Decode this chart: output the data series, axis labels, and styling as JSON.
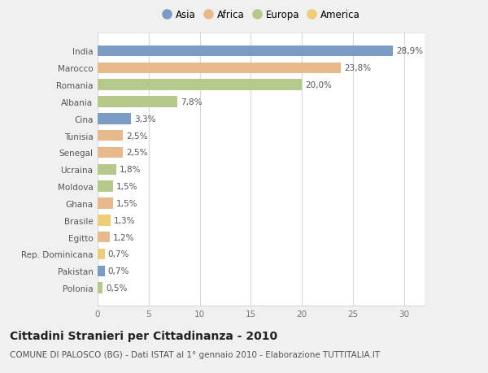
{
  "categories": [
    "India",
    "Marocco",
    "Romania",
    "Albania",
    "Cina",
    "Tunisia",
    "Senegal",
    "Ucraina",
    "Moldova",
    "Ghana",
    "Brasile",
    "Egitto",
    "Rep. Dominicana",
    "Pakistan",
    "Polonia"
  ],
  "values": [
    28.9,
    23.8,
    20.0,
    7.8,
    3.3,
    2.5,
    2.5,
    1.8,
    1.5,
    1.5,
    1.3,
    1.2,
    0.7,
    0.7,
    0.5
  ],
  "labels": [
    "28,9%",
    "23,8%",
    "20,0%",
    "7,8%",
    "3,3%",
    "2,5%",
    "2,5%",
    "1,8%",
    "1,5%",
    "1,5%",
    "1,3%",
    "1,2%",
    "0,7%",
    "0,7%",
    "0,5%"
  ],
  "continents": [
    "Asia",
    "Africa",
    "Europa",
    "Europa",
    "Asia",
    "Africa",
    "Africa",
    "Europa",
    "Europa",
    "Africa",
    "America",
    "Africa",
    "America",
    "Asia",
    "Europa"
  ],
  "colors": {
    "Asia": "#7a9cc4",
    "Africa": "#e8b98a",
    "Europa": "#b5c98a",
    "America": "#f0cc7a"
  },
  "legend_order": [
    "Asia",
    "Africa",
    "Europa",
    "America"
  ],
  "xlim": [
    0,
    32
  ],
  "xticks": [
    0,
    5,
    10,
    15,
    20,
    25,
    30
  ],
  "title": "Cittadini Stranieri per Cittadinanza - 2010",
  "subtitle": "COMUNE DI PALOSCO (BG) - Dati ISTAT al 1° gennaio 2010 - Elaborazione TUTTITALIA.IT",
  "background_color": "#f0f0f0",
  "bar_background": "#ffffff",
  "grid_color": "#d8d8d8",
  "title_fontsize": 10,
  "subtitle_fontsize": 7.5,
  "label_fontsize": 7.5,
  "tick_fontsize": 7.5,
  "legend_fontsize": 8.5
}
